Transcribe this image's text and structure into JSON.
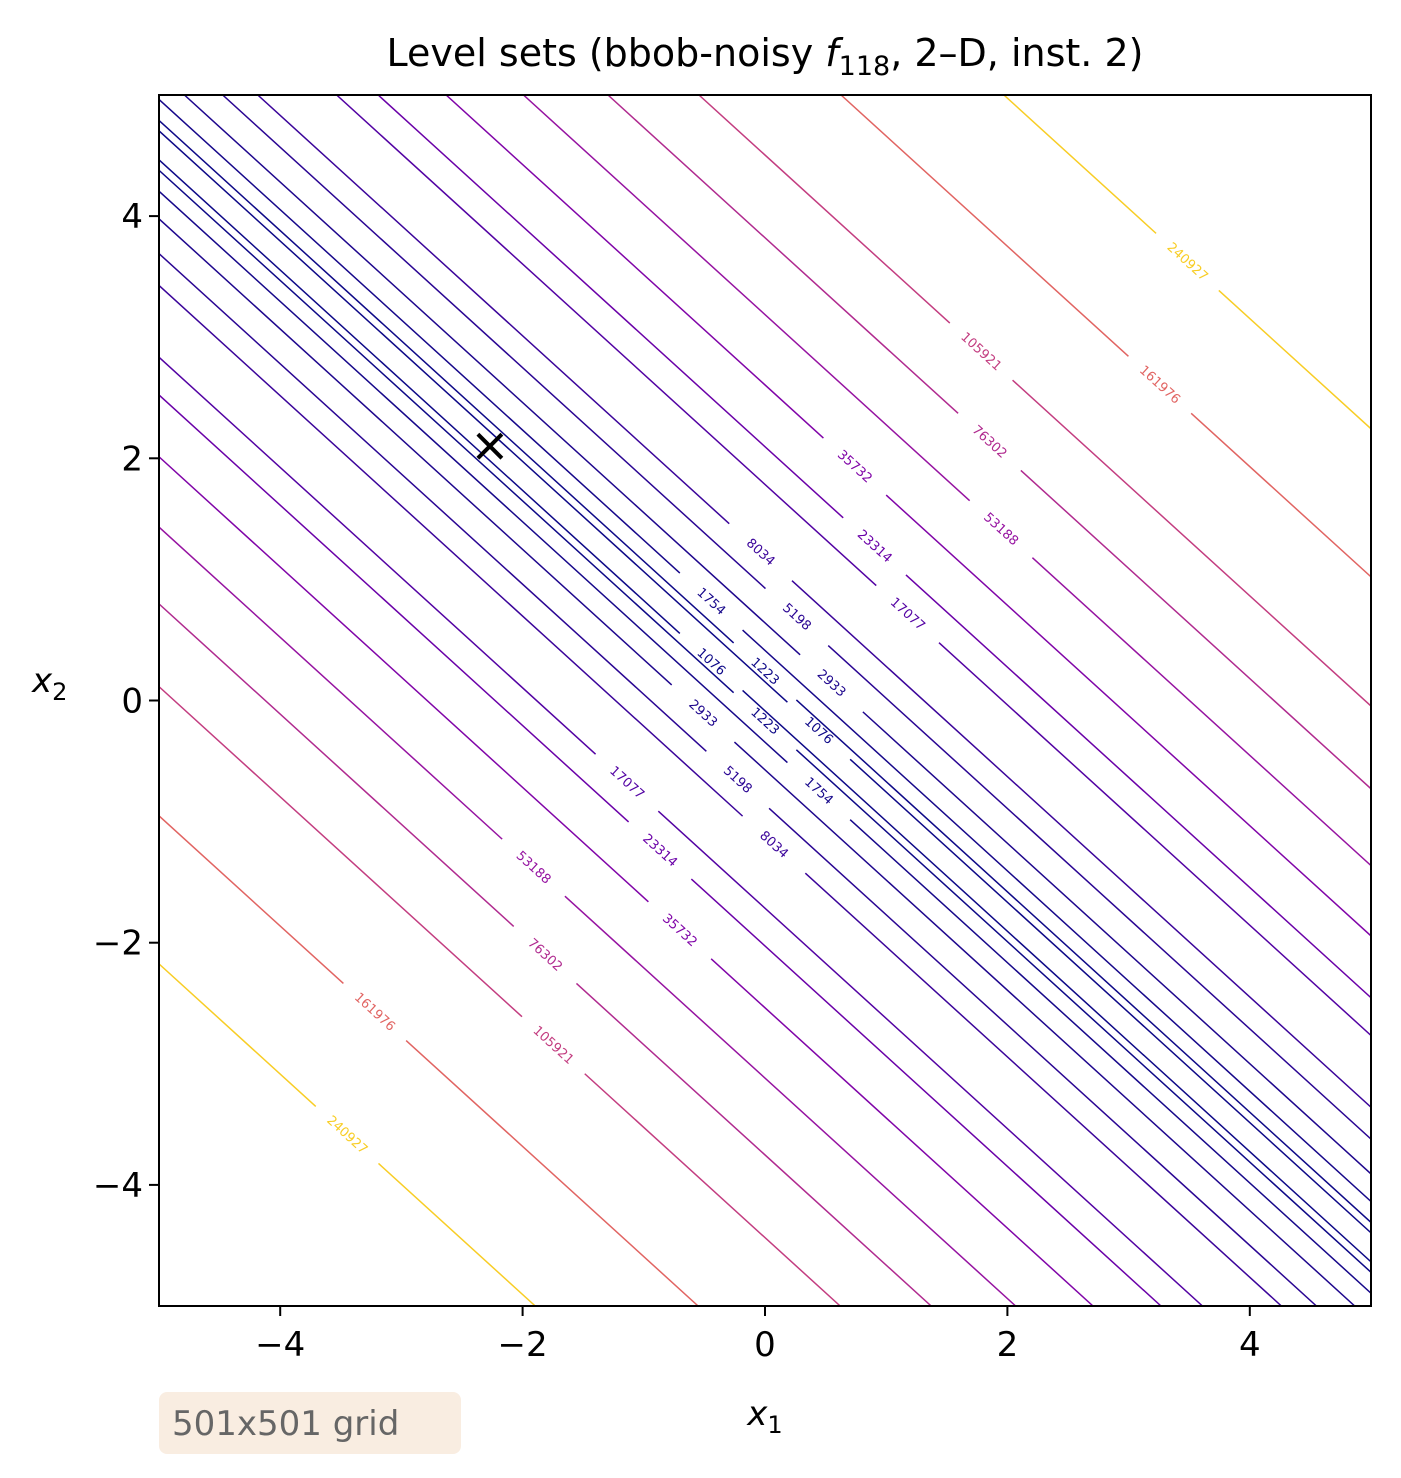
{
  "chart_data": {
    "type": "contour",
    "title": {
      "prefix": "Level sets (bbob-noisy ",
      "function": "f",
      "subscript": "118",
      "suffix": ", 2–D, inst. 2)"
    },
    "xlabel": {
      "base": "x",
      "sub": "1"
    },
    "ylabel": {
      "base": "x",
      "sub": "2"
    },
    "xlim": [
      -5,
      5
    ],
    "ylim": [
      -5,
      5
    ],
    "xticks": [
      {
        "value": -4,
        "label": "−4"
      },
      {
        "value": -2,
        "label": "−2"
      },
      0,
      2,
      4
    ],
    "yticks": [
      {
        "value": -4,
        "label": "−4"
      },
      {
        "value": -2,
        "label": "−2"
      },
      0,
      2,
      4
    ],
    "levels": [
      1076,
      1223,
      1754,
      2933,
      5198,
      8034,
      17077,
      23314,
      35732,
      53188,
      76302,
      105921,
      161976,
      240927
    ],
    "colors": [
      "#0d0887",
      "#0d0887",
      "#16078a",
      "#1e068d",
      "#2a0593",
      "#3b049a",
      "#5302a3",
      "#6a00a8",
      "#8004a8",
      "#9613a1",
      "#b02a8f",
      "#c33d80",
      "#e16462",
      "#f8cd25"
    ],
    "optimum": {
      "x": -2.27,
      "y": 2.1
    },
    "annotation": "501x501 grid"
  }
}
